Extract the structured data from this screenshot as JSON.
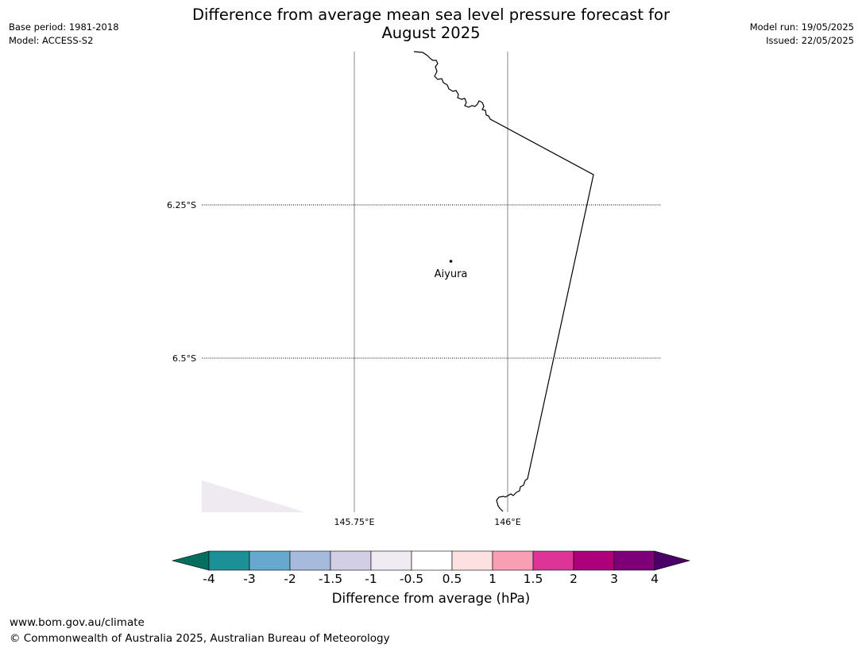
{
  "title_line1": "Difference from average mean sea level pressure forecast for",
  "title_line2": "August 2025",
  "base_period": "Base period: 1981-2018",
  "model": "Model: ACCESS-S2",
  "model_run": "Model run: 19/05/2025",
  "issued": "Issued: 22/05/2025",
  "map": {
    "lat_labels": [
      "6.25°S",
      "6.5°S"
    ],
    "lon_labels": [
      "145.75°E",
      "146°E"
    ],
    "place": {
      "name": "Aiyura"
    },
    "shading_color": "#efe9f1"
  },
  "colorbar": {
    "label": "Difference from average (hPa)",
    "tick_labels": [
      "-4",
      "-3",
      "-2",
      "-1.5",
      "-1",
      "-0.5",
      "0.5",
      "1",
      "1.5",
      "2",
      "3",
      "4"
    ],
    "colors": [
      "#1b9196",
      "#66a8ce",
      "#a6bbdc",
      "#d1cee6",
      "#f0eaf3",
      "#ffffff",
      "#fde0e0",
      "#f89fb6",
      "#dc3497",
      "#ad0179",
      "#7d0078"
    ],
    "under_color": "#056e5e",
    "over_color": "#4b0068"
  },
  "footer_url": "www.bom.gov.au/climate",
  "footer_copyright": "© Commonwealth of Australia 2025, Australian Bureau of Meteorology"
}
